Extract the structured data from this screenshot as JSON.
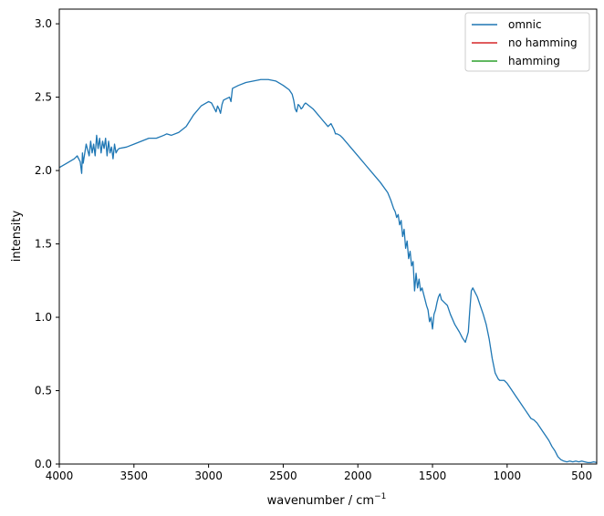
{
  "chart_data": {
    "type": "line",
    "xlabel": "wavenumber / cm",
    "xlabel_sup": "−1",
    "ylabel": "intensity",
    "xlim": [
      4000,
      400
    ],
    "ylim": [
      0.0,
      3.1
    ],
    "x_reversed": true,
    "xticks": [
      4000,
      3500,
      3000,
      2500,
      2000,
      1500,
      1000,
      500
    ],
    "xtick_labels": [
      "4000",
      "3500",
      "3000",
      "2500",
      "2000",
      "1500",
      "1000",
      "500"
    ],
    "yticks": [
      0.0,
      0.5,
      1.0,
      1.5,
      2.0,
      2.5,
      3.0
    ],
    "ytick_labels": [
      "0.0",
      "0.5",
      "1.0",
      "1.5",
      "2.0",
      "2.5",
      "3.0"
    ],
    "grid": false,
    "legend_position": "top-right",
    "series": [
      {
        "name": "omnic",
        "color": "#1f77b4",
        "x": [
          4000,
          3950,
          3900,
          3880,
          3860,
          3850,
          3845,
          3840,
          3820,
          3800,
          3790,
          3780,
          3770,
          3760,
          3750,
          3740,
          3730,
          3720,
          3710,
          3700,
          3690,
          3680,
          3670,
          3660,
          3650,
          3640,
          3630,
          3620,
          3610,
          3600,
          3550,
          3500,
          3450,
          3400,
          3350,
          3300,
          3280,
          3250,
          3200,
          3150,
          3100,
          3050,
          3000,
          2980,
          2960,
          2950,
          2940,
          2930,
          2920,
          2910,
          2900,
          2880,
          2860,
          2850,
          2840,
          2800,
          2750,
          2700,
          2650,
          2600,
          2550,
          2500,
          2460,
          2440,
          2430,
          2420,
          2410,
          2400,
          2390,
          2380,
          2370,
          2360,
          2350,
          2300,
          2250,
          2200,
          2180,
          2160,
          2150,
          2140,
          2120,
          2100,
          2050,
          2000,
          1950,
          1900,
          1850,
          1800,
          1780,
          1760,
          1750,
          1740,
          1730,
          1720,
          1710,
          1700,
          1690,
          1680,
          1670,
          1660,
          1650,
          1640,
          1630,
          1620,
          1610,
          1600,
          1590,
          1580,
          1570,
          1560,
          1550,
          1540,
          1530,
          1520,
          1510,
          1500,
          1490,
          1480,
          1470,
          1460,
          1450,
          1440,
          1420,
          1400,
          1380,
          1350,
          1320,
          1300,
          1280,
          1260,
          1250,
          1240,
          1230,
          1220,
          1200,
          1180,
          1160,
          1140,
          1120,
          1100,
          1080,
          1060,
          1050,
          1040,
          1030,
          1020,
          1000,
          980,
          960,
          940,
          920,
          900,
          880,
          860,
          840,
          820,
          800,
          780,
          760,
          740,
          720,
          700,
          680,
          660,
          640,
          620,
          600,
          580,
          560,
          540,
          520,
          500,
          480,
          460,
          440,
          420,
          400
        ],
        "y": [
          2.02,
          2.05,
          2.08,
          2.1,
          2.06,
          1.98,
          2.12,
          2.05,
          2.18,
          2.1,
          2.2,
          2.12,
          2.18,
          2.1,
          2.24,
          2.15,
          2.22,
          2.12,
          2.2,
          2.15,
          2.22,
          2.1,
          2.2,
          2.12,
          2.16,
          2.08,
          2.18,
          2.12,
          2.14,
          2.15,
          2.16,
          2.18,
          2.2,
          2.22,
          2.22,
          2.24,
          2.25,
          2.24,
          2.26,
          2.3,
          2.38,
          2.44,
          2.47,
          2.46,
          2.42,
          2.4,
          2.44,
          2.42,
          2.39,
          2.45,
          2.48,
          2.49,
          2.5,
          2.47,
          2.56,
          2.58,
          2.6,
          2.61,
          2.62,
          2.62,
          2.61,
          2.58,
          2.55,
          2.52,
          2.48,
          2.42,
          2.4,
          2.45,
          2.44,
          2.42,
          2.43,
          2.45,
          2.46,
          2.42,
          2.36,
          2.3,
          2.32,
          2.28,
          2.25,
          2.25,
          2.24,
          2.22,
          2.16,
          2.1,
          2.04,
          1.98,
          1.92,
          1.85,
          1.8,
          1.74,
          1.72,
          1.68,
          1.7,
          1.63,
          1.66,
          1.55,
          1.6,
          1.47,
          1.52,
          1.4,
          1.45,
          1.35,
          1.38,
          1.18,
          1.3,
          1.2,
          1.26,
          1.18,
          1.2,
          1.16,
          1.12,
          1.08,
          1.05,
          0.97,
          1.0,
          0.92,
          1.02,
          1.05,
          1.1,
          1.14,
          1.16,
          1.12,
          1.1,
          1.08,
          1.02,
          0.95,
          0.9,
          0.86,
          0.83,
          0.9,
          1.05,
          1.18,
          1.2,
          1.18,
          1.14,
          1.08,
          1.02,
          0.95,
          0.85,
          0.72,
          0.62,
          0.58,
          0.57,
          0.57,
          0.57,
          0.57,
          0.55,
          0.52,
          0.49,
          0.46,
          0.43,
          0.4,
          0.37,
          0.34,
          0.31,
          0.3,
          0.28,
          0.25,
          0.22,
          0.19,
          0.16,
          0.12,
          0.09,
          0.05,
          0.03,
          0.02,
          0.015,
          0.02,
          0.015,
          0.02,
          0.015,
          0.02,
          0.015,
          0.01,
          0.01,
          0.015,
          0.01
        ]
      },
      {
        "name": "no hamming",
        "color": "#d62728",
        "x": [],
        "y": []
      },
      {
        "name": "hamming",
        "color": "#2ca02c",
        "x": [],
        "y": []
      }
    ]
  }
}
